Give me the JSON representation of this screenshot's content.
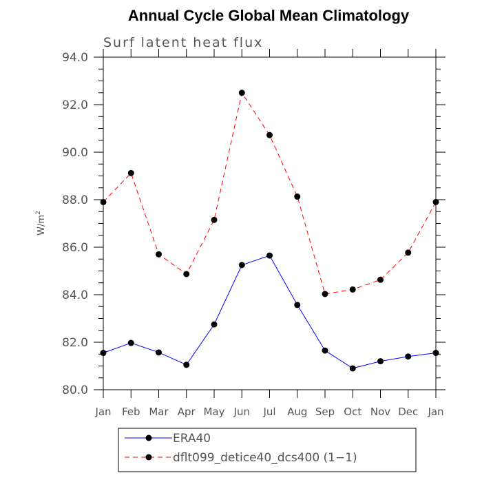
{
  "chart_data": {
    "type": "line",
    "title": "Annual Cycle Global Mean Climatology",
    "subtitle": "Surf latent heat flux",
    "ylabel": "W/m",
    "ylabel_sup": "2",
    "ylim": [
      80.0,
      94.0
    ],
    "yticks": [
      "80.0",
      "82.0",
      "84.0",
      "86.0",
      "88.0",
      "90.0",
      "92.0",
      "94.0"
    ],
    "categories": [
      "Jan",
      "Feb",
      "Mar",
      "Apr",
      "May",
      "Jun",
      "Jul",
      "Aug",
      "Sep",
      "Oct",
      "Nov",
      "Dec",
      "Jan"
    ],
    "series": [
      {
        "name": "ERA40",
        "color": "#0000ff",
        "style": "solid",
        "values": [
          81.55,
          81.97,
          81.57,
          81.05,
          82.75,
          85.25,
          85.65,
          83.57,
          81.65,
          80.9,
          81.2,
          81.4,
          81.55
        ]
      },
      {
        "name": "dflt099_detice40_dcs400 (1−1)",
        "color": "#ff0000",
        "style": "dashed",
        "values": [
          87.9,
          89.12,
          85.7,
          84.87,
          87.15,
          92.5,
          90.72,
          88.13,
          84.03,
          84.22,
          84.63,
          85.77,
          87.9
        ]
      }
    ],
    "grid": false,
    "legend_position": "bottom"
  }
}
